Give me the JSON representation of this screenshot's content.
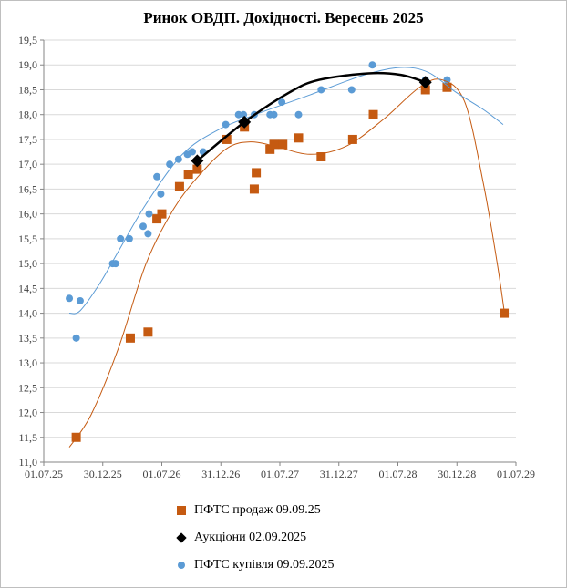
{
  "chart_data": {
    "type": "scatter",
    "title": "Ринок ОВДП. Дохідності.  Вересень 2025",
    "x_unit": "months since 01.07.25",
    "xlim": [
      0,
      48
    ],
    "ylim": [
      11.0,
      19.5
    ],
    "grid": true,
    "legend_position": "bottom",
    "x_ticks": [
      {
        "v": 0,
        "label": "01.07.25"
      },
      {
        "v": 6,
        "label": "30.12.25"
      },
      {
        "v": 12,
        "label": "01.07.26"
      },
      {
        "v": 18,
        "label": "31.12.26"
      },
      {
        "v": 24,
        "label": "01.07.27"
      },
      {
        "v": 30,
        "label": "31.12.27"
      },
      {
        "v": 36,
        "label": "01.07.28"
      },
      {
        "v": 42,
        "label": "30.12.28"
      },
      {
        "v": 48,
        "label": "01.07.29"
      }
    ],
    "y_ticks": [
      {
        "v": 11.0,
        "label": "11,0"
      },
      {
        "v": 11.5,
        "label": "11,5"
      },
      {
        "v": 12.0,
        "label": "12,0"
      },
      {
        "v": 12.5,
        "label": "12,5"
      },
      {
        "v": 13.0,
        "label": "13,0"
      },
      {
        "v": 13.5,
        "label": "13,5"
      },
      {
        "v": 14.0,
        "label": "14,0"
      },
      {
        "v": 14.5,
        "label": "14,5"
      },
      {
        "v": 15.0,
        "label": "15,0"
      },
      {
        "v": 15.5,
        "label": "15,5"
      },
      {
        "v": 16.0,
        "label": "16,0"
      },
      {
        "v": 16.5,
        "label": "16,5"
      },
      {
        "v": 17.0,
        "label": "17,0"
      },
      {
        "v": 17.5,
        "label": "17,5"
      },
      {
        "v": 18.0,
        "label": "18,0"
      },
      {
        "v": 18.5,
        "label": "18,5"
      },
      {
        "v": 19.0,
        "label": "19,0"
      },
      {
        "v": 19.5,
        "label": "19,5"
      }
    ],
    "series": [
      {
        "name": "ПФТС продаж 09.09.25",
        "marker": "square",
        "color": "#c55a11",
        "points": [
          [
            3.3,
            11.5
          ],
          [
            8.8,
            13.5
          ],
          [
            10.6,
            13.62
          ],
          [
            11.5,
            15.9
          ],
          [
            12.0,
            16.0
          ],
          [
            13.8,
            16.55
          ],
          [
            14.7,
            16.8
          ],
          [
            15.6,
            16.9
          ],
          [
            18.6,
            17.5
          ],
          [
            20.4,
            17.75
          ],
          [
            21.4,
            16.5
          ],
          [
            21.6,
            16.83
          ],
          [
            23.0,
            17.3
          ],
          [
            23.4,
            17.4
          ],
          [
            24.3,
            17.4
          ],
          [
            25.9,
            17.53
          ],
          [
            28.2,
            17.15
          ],
          [
            31.4,
            17.5
          ],
          [
            33.5,
            18.0
          ],
          [
            38.8,
            18.5
          ],
          [
            41.0,
            18.55
          ],
          [
            46.8,
            14.0
          ]
        ],
        "trend": [
          [
            2.6,
            11.3
          ],
          [
            4.8,
            11.95
          ],
          [
            7.6,
            13.3
          ],
          [
            10.4,
            15.0
          ],
          [
            13.2,
            16.1
          ],
          [
            15.9,
            16.8
          ],
          [
            18.7,
            17.33
          ],
          [
            21.0,
            17.45
          ],
          [
            23.4,
            17.37
          ],
          [
            27.1,
            17.2
          ],
          [
            30.8,
            17.37
          ],
          [
            34.5,
            17.9
          ],
          [
            38.2,
            18.55
          ],
          [
            40.5,
            18.7
          ],
          [
            42.8,
            18.25
          ],
          [
            44.7,
            16.6
          ],
          [
            46.1,
            15.0
          ],
          [
            46.8,
            14.05
          ]
        ]
      },
      {
        "name": "Аукціони 02.09.2025",
        "marker": "diamond",
        "color": "#000000",
        "points": [
          [
            15.6,
            17.07
          ],
          [
            20.4,
            17.85
          ],
          [
            38.8,
            18.65
          ]
        ],
        "trend": [
          [
            15.6,
            17.07
          ],
          [
            20.4,
            17.85
          ],
          [
            25.0,
            18.45
          ],
          [
            28.0,
            18.7
          ],
          [
            33.0,
            18.83
          ],
          [
            36.3,
            18.8
          ],
          [
            38.8,
            18.65
          ]
        ]
      },
      {
        "name": "ПФТС купівля 09.09.2025",
        "marker": "circle",
        "color": "#5b9bd5",
        "points": [
          [
            2.6,
            14.3
          ],
          [
            3.3,
            13.5
          ],
          [
            3.7,
            14.25
          ],
          [
            7.0,
            15.0
          ],
          [
            7.3,
            15.0
          ],
          [
            7.8,
            15.5
          ],
          [
            8.7,
            15.5
          ],
          [
            10.1,
            15.75
          ],
          [
            10.6,
            15.6
          ],
          [
            10.7,
            16.0
          ],
          [
            11.5,
            16.75
          ],
          [
            11.9,
            16.4
          ],
          [
            12.8,
            17.0
          ],
          [
            13.7,
            17.1
          ],
          [
            14.6,
            17.2
          ],
          [
            15.1,
            17.25
          ],
          [
            16.2,
            17.25
          ],
          [
            18.5,
            17.8
          ],
          [
            19.8,
            18.0
          ],
          [
            20.3,
            18.0
          ],
          [
            21.4,
            18.0
          ],
          [
            23.0,
            18.0
          ],
          [
            23.4,
            18.0
          ],
          [
            24.2,
            18.25
          ],
          [
            25.9,
            18.0
          ],
          [
            28.2,
            18.5
          ],
          [
            31.3,
            18.5
          ],
          [
            33.4,
            19.0
          ],
          [
            38.8,
            18.7
          ],
          [
            41.0,
            18.7
          ]
        ],
        "trend": [
          [
            2.6,
            14.0
          ],
          [
            3.7,
            14.05
          ],
          [
            5.7,
            14.6
          ],
          [
            7.6,
            15.25
          ],
          [
            10.4,
            16.2
          ],
          [
            14.1,
            17.2
          ],
          [
            17.8,
            17.7
          ],
          [
            21.5,
            18.0
          ],
          [
            27.1,
            18.4
          ],
          [
            32.6,
            18.8
          ],
          [
            36.3,
            18.95
          ],
          [
            39.1,
            18.85
          ],
          [
            41.9,
            18.45
          ],
          [
            44.7,
            18.1
          ],
          [
            46.7,
            17.8
          ]
        ]
      }
    ]
  }
}
